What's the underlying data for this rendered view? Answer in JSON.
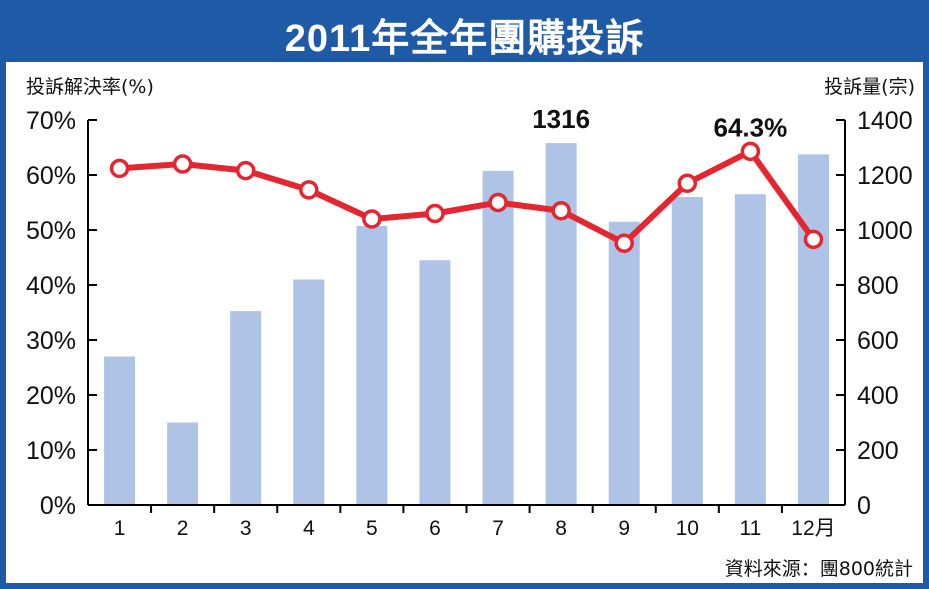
{
  "title": "2011年全年團購投訴",
  "source": "資料來源：團800統計",
  "colors": {
    "frame": "#1f5aa6",
    "bar": "#aec3e6",
    "line": "#e32630",
    "marker_fill": "#ffffff",
    "text": "#111111"
  },
  "chart_data": {
    "type": "bar",
    "categories": [
      "1",
      "2",
      "3",
      "4",
      "5",
      "6",
      "7",
      "8",
      "9",
      "10",
      "11",
      "12月"
    ],
    "left_axis": {
      "label": "投訴解決率(%)",
      "ticks": [
        "0%",
        "10%",
        "20%",
        "30%",
        "40%",
        "50%",
        "60%",
        "70%"
      ],
      "ylim": [
        0,
        70
      ]
    },
    "right_axis": {
      "label": "投訴量(宗)",
      "ticks": [
        "0",
        "200",
        "400",
        "600",
        "800",
        "1000",
        "1200",
        "1400"
      ],
      "ylim": [
        0,
        1400
      ]
    },
    "series": [
      {
        "type": "bar",
        "axis": "right",
        "values": [
          540,
          300,
          705,
          820,
          1015,
          890,
          1215,
          1316,
          1030,
          1120,
          1130,
          1275
        ]
      },
      {
        "type": "line",
        "axis": "left",
        "values": [
          61.2,
          62.0,
          60.8,
          57.3,
          52.0,
          53.0,
          55.0,
          53.5,
          47.6,
          58.5,
          64.3,
          48.3
        ]
      }
    ],
    "annotations": [
      {
        "text": "1316",
        "series": 0,
        "index": 7
      },
      {
        "text": "64.3%",
        "series": 1,
        "index": 10
      }
    ],
    "grid": false
  }
}
